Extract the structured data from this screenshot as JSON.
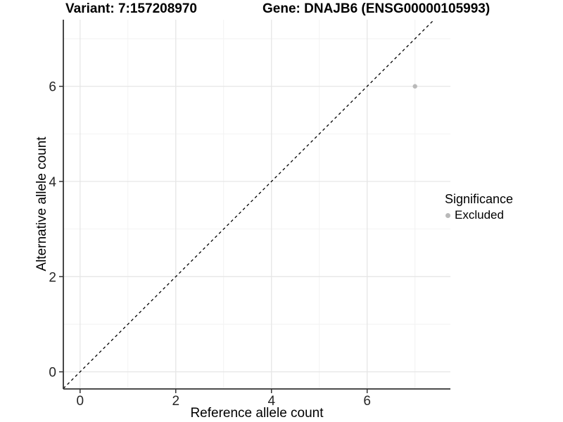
{
  "titles": {
    "variant": "Variant: 7:157208970",
    "gene": "Gene: DNAJB6 (ENSG00000105993)"
  },
  "colors": {
    "background": "#ffffff",
    "axis_line": "#333333",
    "tick_label": "#262626",
    "grid_major": "#e6e6e6",
    "grid_minor": "#f2f2f2",
    "point": "#b9b9b9",
    "reference_line": "#000000"
  },
  "chart_data": {
    "type": "scatter",
    "title_left": "Variant: 7:157208970",
    "title_right": "Gene: DNAJB6 (ENSG00000105993)",
    "xlabel": "Reference allele count",
    "ylabel": "Alternative allele count",
    "xlim": [
      -0.35,
      7.74
    ],
    "ylim": [
      -0.36,
      7.4
    ],
    "x_ticks": [
      0,
      2,
      4,
      6
    ],
    "y_ticks": [
      0,
      2,
      4,
      6
    ],
    "minor_grid_x": [
      1,
      3,
      5,
      7
    ],
    "minor_grid_y": [
      1,
      3,
      5,
      7
    ],
    "grid": true,
    "series": [
      {
        "name": "Excluded",
        "color": "#b9b9b9",
        "points": [
          {
            "x": 7,
            "y": 6
          }
        ]
      }
    ],
    "reference_line": {
      "type": "identity",
      "style": "dashed",
      "color": "#000000"
    },
    "legend": {
      "title": "Significance",
      "position": "right",
      "entries": [
        {
          "label": "Excluded",
          "color": "#b9b9b9"
        }
      ]
    }
  }
}
